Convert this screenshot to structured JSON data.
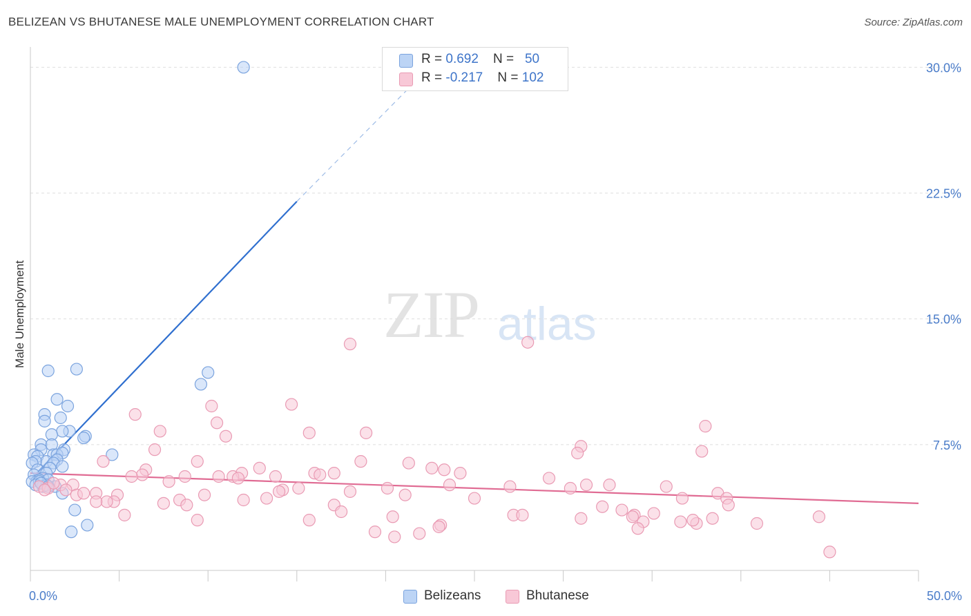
{
  "title": "BELIZEAN VS BHUTANESE MALE UNEMPLOYMENT CORRELATION CHART",
  "source": "Source: ZipAtlas.com",
  "watermark": {
    "part1": "ZIP",
    "part2": "atlas"
  },
  "legend": {
    "rows": [
      {
        "r_label": "R = ",
        "r_value": "0.692",
        "n_label": "N = ",
        "n_value": "50",
        "color": "#bcd4f5"
      },
      {
        "r_label": "R = ",
        "r_value": "-0.217",
        "n_label": "N = ",
        "n_value": "102",
        "color": "#f8c8d7"
      }
    ]
  },
  "bottom_legend": [
    {
      "label": "Belizeans",
      "color": "#bcd4f5"
    },
    {
      "label": "Bhutanese",
      "color": "#f8c8d7"
    }
  ],
  "chart_data": {
    "type": "scatter",
    "title": "BELIZEAN VS BHUTANESE MALE UNEMPLOYMENT CORRELATION CHART",
    "xlabel": "",
    "ylabel": "Male Unemployment",
    "xlim": [
      0,
      50
    ],
    "ylim": [
      0,
      30
    ],
    "y_ticks": [
      {
        "value": 7.5,
        "label": "7.5%"
      },
      {
        "value": 15.0,
        "label": "15.0%"
      },
      {
        "value": 22.5,
        "label": "22.5%"
      },
      {
        "value": 30.0,
        "label": "30.0%"
      }
    ],
    "x_tick_labels": [
      {
        "value": 0,
        "label": "0.0%"
      },
      {
        "value": 50,
        "label": "50.0%"
      }
    ],
    "grid": true,
    "legend_position": "top-center",
    "series": [
      {
        "name": "Belizeans",
        "color": "#7aa3de",
        "fill": "#bcd4f5",
        "trend": {
          "x_start": 0.0,
          "y_start": 5.4,
          "x_end": 15.0,
          "y_end": 22.0,
          "dashed_to_x": 22.0,
          "dashed_to_y": 29.5
        },
        "points": [
          [
            12.0,
            30.0
          ],
          [
            1.0,
            11.9
          ],
          [
            2.6,
            12.0
          ],
          [
            10.0,
            11.8
          ],
          [
            9.6,
            11.1
          ],
          [
            1.5,
            10.2
          ],
          [
            2.1,
            9.8
          ],
          [
            0.8,
            9.3
          ],
          [
            1.7,
            9.1
          ],
          [
            0.8,
            8.9
          ],
          [
            2.2,
            8.3
          ],
          [
            1.8,
            8.3
          ],
          [
            1.2,
            8.1
          ],
          [
            3.1,
            8.0
          ],
          [
            3.0,
            7.9
          ],
          [
            0.6,
            7.5
          ],
          [
            1.2,
            7.5
          ],
          [
            0.6,
            7.2
          ],
          [
            1.9,
            7.2
          ],
          [
            4.6,
            6.9
          ],
          [
            0.2,
            6.9
          ],
          [
            1.3,
            6.9
          ],
          [
            1.5,
            6.9
          ],
          [
            1.8,
            7.0
          ],
          [
            0.4,
            6.8
          ],
          [
            1.5,
            6.6
          ],
          [
            0.9,
            6.5
          ],
          [
            0.3,
            6.5
          ],
          [
            0.1,
            6.4
          ],
          [
            1.3,
            6.4
          ],
          [
            1.8,
            6.2
          ],
          [
            1.1,
            6.1
          ],
          [
            0.4,
            6.0
          ],
          [
            0.9,
            5.8
          ],
          [
            0.2,
            5.7
          ],
          [
            0.7,
            5.5
          ],
          [
            0.5,
            5.4
          ],
          [
            1.0,
            5.4
          ],
          [
            0.1,
            5.3
          ],
          [
            0.5,
            5.3
          ],
          [
            1.4,
            5.0
          ],
          [
            0.9,
            5.1
          ],
          [
            0.7,
            5.0
          ],
          [
            0.3,
            5.1
          ],
          [
            1.8,
            4.6
          ],
          [
            2.5,
            3.6
          ],
          [
            3.2,
            2.7
          ],
          [
            2.3,
            2.3
          ],
          [
            0.6,
            5.2
          ],
          [
            1.0,
            5.0
          ]
        ]
      },
      {
        "name": "Bhutanese",
        "color": "#e99ab3",
        "fill": "#f8c8d7",
        "trend": {
          "x_start": 0.0,
          "y_start": 5.8,
          "x_end": 50.0,
          "y_end": 4.0
        },
        "points": [
          [
            28.0,
            13.6
          ],
          [
            18.0,
            13.5
          ],
          [
            14.7,
            9.9
          ],
          [
            10.2,
            9.8
          ],
          [
            5.9,
            9.3
          ],
          [
            10.5,
            8.8
          ],
          [
            38.0,
            8.6
          ],
          [
            7.3,
            8.3
          ],
          [
            15.7,
            8.2
          ],
          [
            18.9,
            8.2
          ],
          [
            11.0,
            8.0
          ],
          [
            31.0,
            7.4
          ],
          [
            7.0,
            7.2
          ],
          [
            37.8,
            7.1
          ],
          [
            30.8,
            7.0
          ],
          [
            4.1,
            6.5
          ],
          [
            9.4,
            6.5
          ],
          [
            18.6,
            6.5
          ],
          [
            21.3,
            6.4
          ],
          [
            12.9,
            6.1
          ],
          [
            22.6,
            6.1
          ],
          [
            6.5,
            6.0
          ],
          [
            23.3,
            6.0
          ],
          [
            24.2,
            5.8
          ],
          [
            11.9,
            5.8
          ],
          [
            16.0,
            5.8
          ],
          [
            17.1,
            5.8
          ],
          [
            16.3,
            5.7
          ],
          [
            6.3,
            5.7
          ],
          [
            5.7,
            5.6
          ],
          [
            8.7,
            5.6
          ],
          [
            10.6,
            5.6
          ],
          [
            11.4,
            5.6
          ],
          [
            13.8,
            5.6
          ],
          [
            11.7,
            5.5
          ],
          [
            29.2,
            5.5
          ],
          [
            7.8,
            5.3
          ],
          [
            23.6,
            5.1
          ],
          [
            31.3,
            5.1
          ],
          [
            32.6,
            5.1
          ],
          [
            2.4,
            5.1
          ],
          [
            27.0,
            5.0
          ],
          [
            35.8,
            5.0
          ],
          [
            20.1,
            4.9
          ],
          [
            30.4,
            4.9
          ],
          [
            15.1,
            4.9
          ],
          [
            14.2,
            4.8
          ],
          [
            14.0,
            4.7
          ],
          [
            18.0,
            4.7
          ],
          [
            3.7,
            4.6
          ],
          [
            38.7,
            4.6
          ],
          [
            4.9,
            4.5
          ],
          [
            9.8,
            4.5
          ],
          [
            2.6,
            4.5
          ],
          [
            3.0,
            4.6
          ],
          [
            21.1,
            4.5
          ],
          [
            39.2,
            4.3
          ],
          [
            36.7,
            4.3
          ],
          [
            25.0,
            4.3
          ],
          [
            13.3,
            4.3
          ],
          [
            8.4,
            4.2
          ],
          [
            12.0,
            4.2
          ],
          [
            4.7,
            4.1
          ],
          [
            4.3,
            4.1
          ],
          [
            3.7,
            4.1
          ],
          [
            7.5,
            4.0
          ],
          [
            8.8,
            3.9
          ],
          [
            17.1,
            3.9
          ],
          [
            39.3,
            3.9
          ],
          [
            32.2,
            3.8
          ],
          [
            33.3,
            3.6
          ],
          [
            17.5,
            3.5
          ],
          [
            27.2,
            3.3
          ],
          [
            27.7,
            3.3
          ],
          [
            35.1,
            3.4
          ],
          [
            34.0,
            3.3
          ],
          [
            5.3,
            3.3
          ],
          [
            20.4,
            3.2
          ],
          [
            31.0,
            3.1
          ],
          [
            33.9,
            3.2
          ],
          [
            38.4,
            3.1
          ],
          [
            44.4,
            3.2
          ],
          [
            15.7,
            3.0
          ],
          [
            9.4,
            3.0
          ],
          [
            34.5,
            2.9
          ],
          [
            36.6,
            2.9
          ],
          [
            37.5,
            2.8
          ],
          [
            40.9,
            2.8
          ],
          [
            37.3,
            3.0
          ],
          [
            23.1,
            2.7
          ],
          [
            34.2,
            2.5
          ],
          [
            23.0,
            2.6
          ],
          [
            19.4,
            2.3
          ],
          [
            21.9,
            2.2
          ],
          [
            20.5,
            2.0
          ],
          [
            45.0,
            1.1
          ],
          [
            0.5,
            5.0
          ],
          [
            1.0,
            4.9
          ],
          [
            1.7,
            5.1
          ],
          [
            2.0,
            4.8
          ],
          [
            1.3,
            5.2
          ],
          [
            0.8,
            4.8
          ]
        ]
      }
    ]
  }
}
